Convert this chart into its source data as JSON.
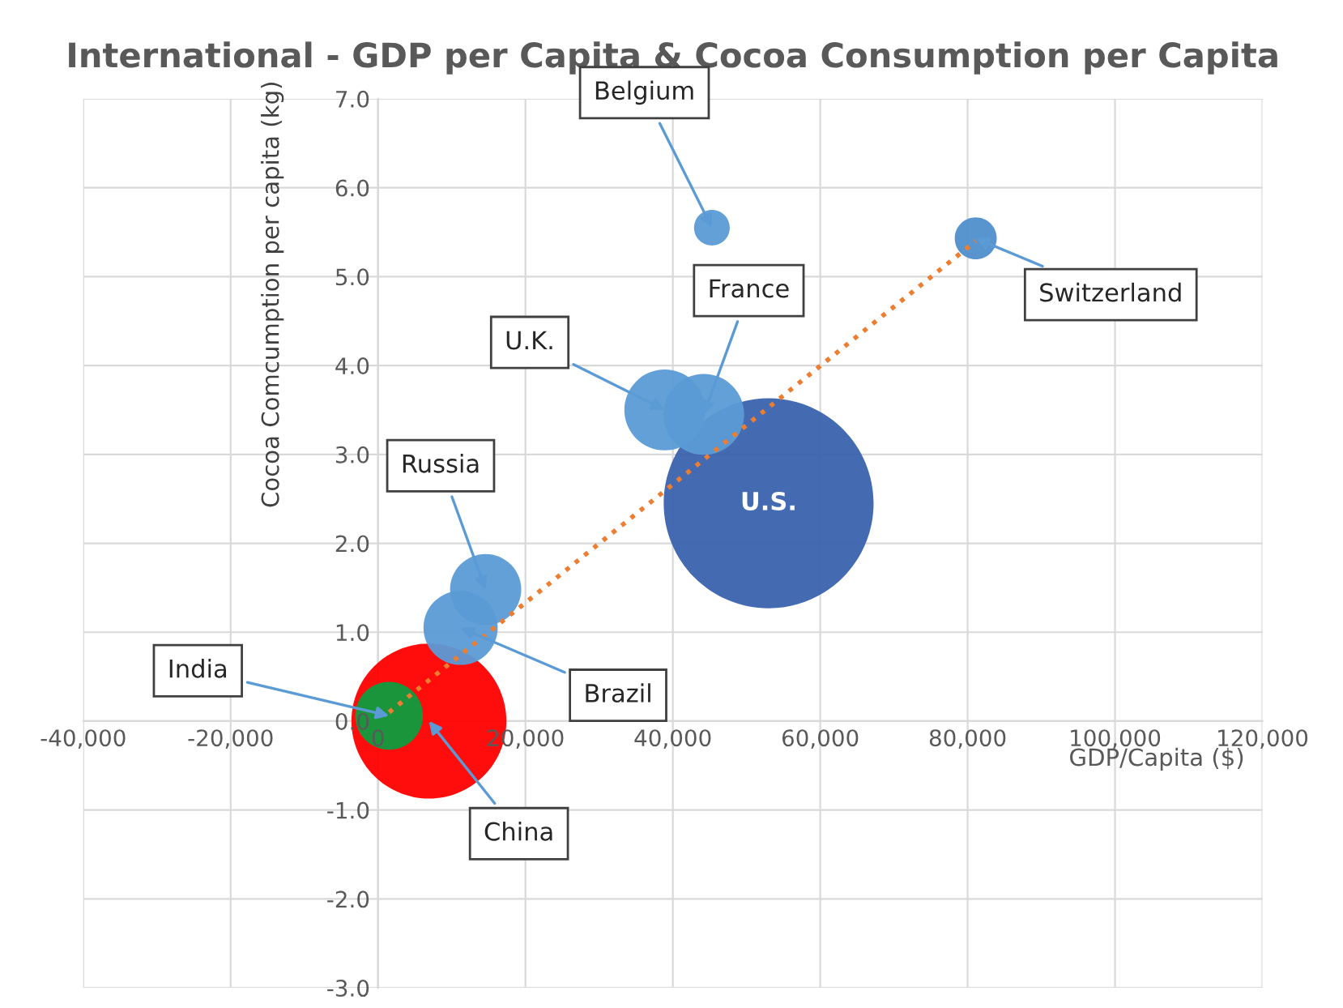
{
  "chart_data": {
    "type": "bubble",
    "title": "International - GDP per Capita & Cocoa Consumption per Capita",
    "xlabel": "GDP/Capita ($)",
    "ylabel": "Cocoa Comcumption per capita (kg)",
    "xlim": [
      -40000,
      120000
    ],
    "xticks": [
      {
        "value": -40000,
        "label": "-40,000"
      },
      {
        "value": -20000,
        "label": "-20,000"
      },
      {
        "value": 0,
        "label": "0"
      },
      {
        "value": 20000,
        "label": "20,000"
      },
      {
        "value": 40000,
        "label": "40,000"
      },
      {
        "value": 60000,
        "label": "60,000"
      },
      {
        "value": 80000,
        "label": "80,000"
      },
      {
        "value": 100000,
        "label": "100,000"
      },
      {
        "value": 120000,
        "label": "120,000"
      }
    ],
    "ylim": [
      -3,
      7
    ],
    "yticks": [
      {
        "value": -3,
        "label": "-3.0"
      },
      {
        "value": -2,
        "label": "-2.0"
      },
      {
        "value": -1,
        "label": "-1.0"
      },
      {
        "value": 0,
        "label": "0.0"
      },
      {
        "value": 1,
        "label": "1.0"
      },
      {
        "value": 2,
        "label": "2.0"
      },
      {
        "value": 3,
        "label": "3.0"
      },
      {
        "value": 4,
        "label": "4.0"
      },
      {
        "value": 5,
        "label": "5.0"
      },
      {
        "value": 6,
        "label": "6.0"
      },
      {
        "value": 7,
        "label": "7.0"
      }
    ],
    "grid": true,
    "legend": false,
    "series": [
      {
        "x": [
          53000,
          6900,
          1500,
          11200,
          14600,
          38900,
          44200,
          45300,
          81100
        ],
        "values": [
          2.45,
          0.0,
          0.06,
          1.05,
          1.48,
          3.5,
          3.45,
          5.55,
          5.43
        ],
        "sizes": [
          1,
          0.545,
          0.104,
          0.125,
          0.115,
          0.148,
          0.148,
          0.029,
          0.04
        ],
        "colors": [
          "#3a62ad",
          "#ff0000",
          "#0f9d3f",
          "#5b9bd5",
          "#5b9bd5",
          "#5b9bd5",
          "#5b9bd5",
          "#5b9bd5",
          "#4f8fcc"
        ]
      },
      {
        "type": "line",
        "x": [
          1500,
          81100
        ],
        "values": [
          0.1,
          5.4
        ],
        "color": "#ed7d31",
        "line_style": "dotted",
        "marker": "none"
      }
    ],
    "annotations": [
      {
        "text": "U.S.",
        "x": 53000,
        "y": 2.45
      },
      {
        "text": "China",
        "x": 6900,
        "y": 0.0
      },
      {
        "text": "India",
        "x": 1500,
        "y": 0.06
      },
      {
        "text": "Brazil",
        "x": 11200,
        "y": 1.05
      },
      {
        "text": "Russia",
        "x": 14600,
        "y": 1.48
      },
      {
        "text": "U.K.",
        "x": 38900,
        "y": 3.5
      },
      {
        "text": "France",
        "x": 44200,
        "y": 3.45
      },
      {
        "text": "Belgium",
        "x": 45300,
        "y": 5.55
      },
      {
        "text": "Switzerland",
        "x": 81100,
        "y": 5.43
      }
    ]
  }
}
